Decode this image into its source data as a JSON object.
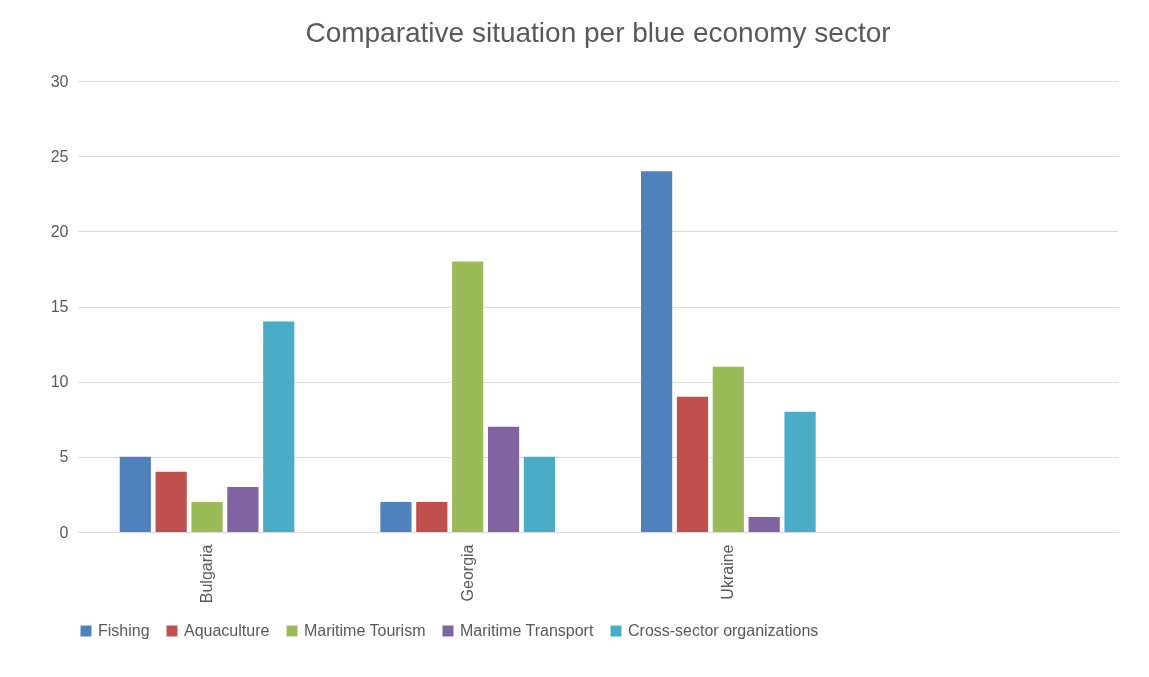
{
  "chart_data": {
    "type": "bar",
    "title": "Comparative situation per blue economy sector",
    "categories": [
      "Bulgaria",
      "Georgia",
      "Ukraine",
      null
    ],
    "series": [
      {
        "name": "Fishing",
        "color": "#4f81bd",
        "values": [
          5,
          2,
          24,
          null
        ]
      },
      {
        "name": "Aquaculture",
        "color": "#c0504d",
        "values": [
          4,
          2,
          9,
          null
        ]
      },
      {
        "name": "Maritime Tourism",
        "color": "#9bbb59",
        "values": [
          2,
          18,
          11,
          null
        ]
      },
      {
        "name": "Maritime Transport",
        "color": "#8064a2",
        "values": [
          3,
          7,
          1,
          null
        ]
      },
      {
        "name": "Cross-sector organizations",
        "color": "#4bacc6",
        "values": [
          14,
          5,
          8,
          null
        ]
      }
    ],
    "ylim": [
      0,
      30
    ],
    "yticks": [
      0,
      5,
      10,
      15,
      20,
      25,
      30
    ],
    "grid": "y",
    "legend": "bottom"
  }
}
